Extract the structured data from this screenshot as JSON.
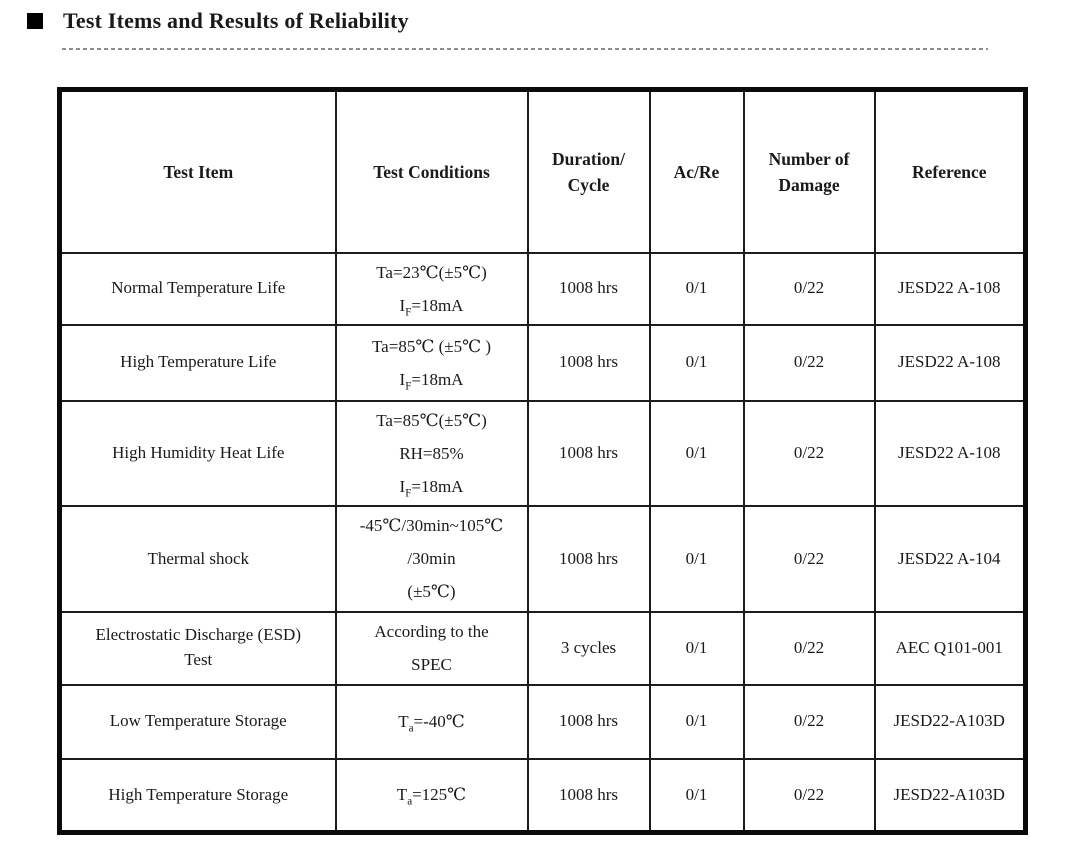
{
  "section": {
    "bullet_icon": "black-square",
    "title": "Test Items and Results of Reliability"
  },
  "colors": {
    "text": "#1a1a1a",
    "table_border": "#0a0a0a",
    "divider": "#8c8c8c",
    "background": "#ffffff"
  },
  "table": {
    "headers": {
      "test_item": "Test Item",
      "test_conditions": "Test Conditions",
      "duration_cycle": "Duration/\nCycle",
      "ac_re": "Ac/Re",
      "number_of_damage": "Number of\nDamage",
      "reference": "Reference"
    },
    "rows": [
      {
        "test_item": "Normal Temperature Life",
        "test_conditions": "Ta=23℃(±5℃)\nI_{F}=18mA",
        "duration_cycle": "1008 hrs",
        "ac_re": "0/1",
        "number_of_damage": "0/22",
        "reference": "JESD22 A-108"
      },
      {
        "test_item": "High Temperature Life",
        "test_conditions": "Ta=85℃ (±5℃ )\nI_{F}=18mA",
        "duration_cycle": "1008 hrs",
        "ac_re": "0/1",
        "number_of_damage": "0/22",
        "reference": "JESD22 A-108"
      },
      {
        "test_item": "High Humidity Heat Life",
        "test_conditions": "Ta=85℃(±5℃)\nRH=85%\nI_{F}=18mA",
        "duration_cycle": "1008 hrs",
        "ac_re": "0/1",
        "number_of_damage": "0/22",
        "reference": "JESD22 A-108"
      },
      {
        "test_item": "Thermal shock",
        "test_conditions": "-45℃/30min~105℃\n/30min\n(±5℃)",
        "duration_cycle": "1008 hrs",
        "ac_re": "0/1",
        "number_of_damage": "0/22",
        "reference": "JESD22 A-104"
      },
      {
        "test_item": "Electrostatic Discharge (ESD)\nTest",
        "test_conditions": "According to the\nSPEC",
        "duration_cycle": "3 cycles",
        "ac_re": "0/1",
        "number_of_damage": "0/22",
        "reference": "AEC Q101-001"
      },
      {
        "test_item": "Low Temperature Storage",
        "test_conditions": "T_{a}=-40℃",
        "duration_cycle": "1008 hrs",
        "ac_re": "0/1",
        "number_of_damage": "0/22",
        "reference": "JESD22-A103D"
      },
      {
        "test_item": "High Temperature Storage",
        "test_conditions": "T_{a}=125℃",
        "duration_cycle": "1008 hrs",
        "ac_re": "0/1",
        "number_of_damage": "0/22",
        "reference": "JESD22-A103D"
      }
    ]
  }
}
